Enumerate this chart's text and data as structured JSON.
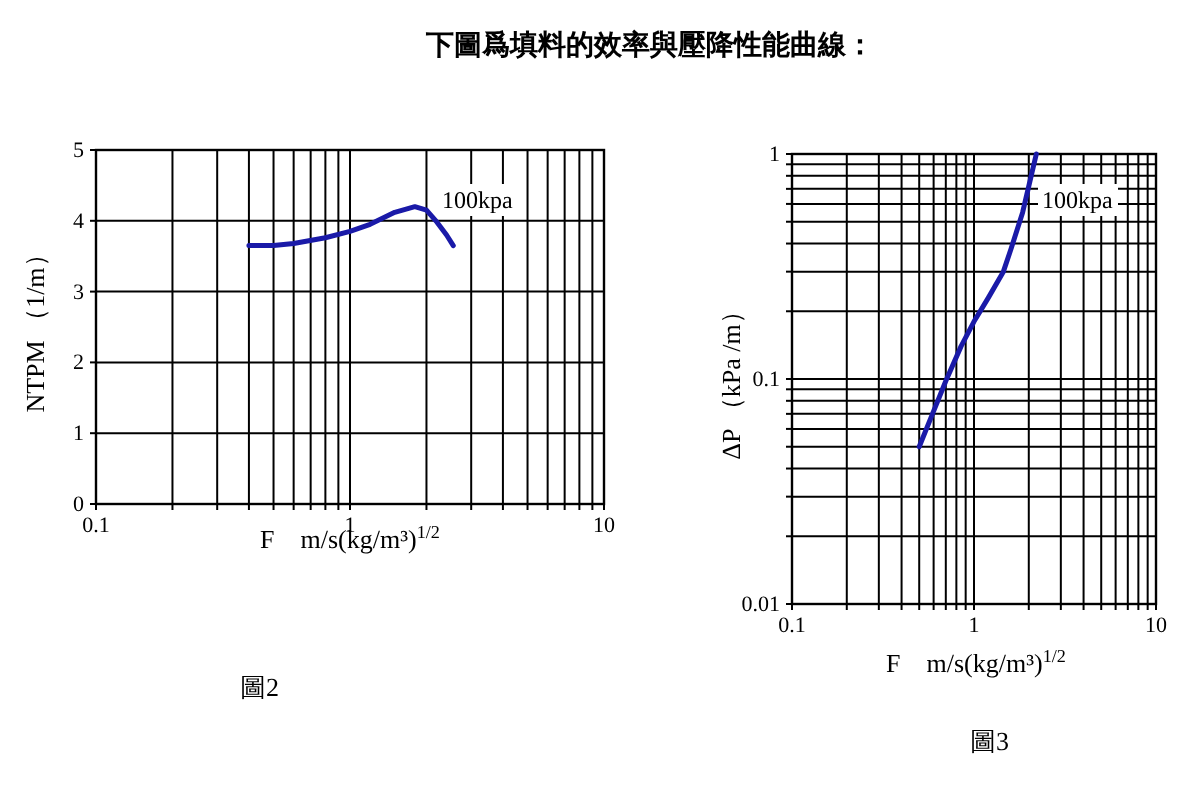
{
  "chart_data": [
    {
      "type": "line",
      "title": "下圖爲填料的效率與壓降性能曲線：",
      "xlabel": "F　m/s(kg/m³)$^{1/2}$",
      "ylabel": "NTPM （1/m）",
      "log": "x",
      "grid": true,
      "marker": "none",
      "line_style": "solid",
      "xlim": [
        0.1,
        10
      ],
      "xticks": [
        0.1,
        {
          "value": 0.2,
          "label": null
        },
        {
          "value": 0.3,
          "label": null
        },
        {
          "value": 0.4,
          "label": null
        },
        {
          "value": 0.5,
          "label": null
        },
        {
          "value": 0.6,
          "label": null
        },
        {
          "value": 0.7,
          "label": null
        },
        {
          "value": 0.8,
          "label": null
        },
        {
          "value": 0.9,
          "label": null
        },
        1,
        {
          "value": 2,
          "label": null
        },
        {
          "value": 3,
          "label": null
        },
        {
          "value": 4,
          "label": null
        },
        {
          "value": 5,
          "label": null
        },
        {
          "value": 6,
          "label": null
        },
        {
          "value": 7,
          "label": null
        },
        {
          "value": 8,
          "label": null
        },
        {
          "value": 9,
          "label": null
        },
        10
      ],
      "ylim": [
        0,
        5
      ],
      "yticks": [
        0,
        1,
        2,
        3,
        4,
        5
      ],
      "series": [
        {
          "color": "#1a1aa8",
          "x": [
            0.4,
            0.5,
            0.6,
            0.8,
            1.0,
            1.2,
            1.5,
            1.8,
            2.0,
            2.2,
            2.4,
            2.55
          ],
          "values": [
            3.65,
            3.65,
            3.68,
            3.76,
            3.85,
            3.95,
            4.12,
            4.2,
            4.15,
            3.98,
            3.8,
            3.65
          ]
        }
      ],
      "annotations": [
        "100kpa",
        "圖2"
      ]
    },
    {
      "type": "line",
      "xlabel": "F　m/s(kg/m³)$^{1/2}$",
      "ylabel": "ΔP （kPa /m）",
      "log": "xy",
      "grid": true,
      "marker": "none",
      "line_style": "solid",
      "xlim": [
        0.1,
        10
      ],
      "xticks": [
        0.1,
        {
          "value": 0.2,
          "label": null
        },
        {
          "value": 0.3,
          "label": null
        },
        {
          "value": 0.4,
          "label": null
        },
        {
          "value": 0.5,
          "label": null
        },
        {
          "value": 0.6,
          "label": null
        },
        {
          "value": 0.7,
          "label": null
        },
        {
          "value": 0.8,
          "label": null
        },
        {
          "value": 0.9,
          "label": null
        },
        1,
        {
          "value": 2,
          "label": null
        },
        {
          "value": 3,
          "label": null
        },
        {
          "value": 4,
          "label": null
        },
        {
          "value": 5,
          "label": null
        },
        {
          "value": 6,
          "label": null
        },
        {
          "value": 7,
          "label": null
        },
        {
          "value": 8,
          "label": null
        },
        {
          "value": 9,
          "label": null
        },
        10
      ],
      "ylim": [
        0.01,
        1
      ],
      "yticks": [
        0.01,
        {
          "value": 0.02,
          "label": null
        },
        {
          "value": 0.03,
          "label": null
        },
        {
          "value": 0.04,
          "label": null
        },
        {
          "value": 0.05,
          "label": null
        },
        {
          "value": 0.06,
          "label": null
        },
        {
          "value": 0.07,
          "label": null
        },
        {
          "value": 0.08,
          "label": null
        },
        {
          "value": 0.09,
          "label": null
        },
        0.1,
        {
          "value": 0.2,
          "label": null
        },
        {
          "value": 0.3,
          "label": null
        },
        {
          "value": 0.4,
          "label": null
        },
        {
          "value": 0.5,
          "label": null
        },
        {
          "value": 0.6,
          "label": null
        },
        {
          "value": 0.7,
          "label": null
        },
        {
          "value": 0.8,
          "label": null
        },
        {
          "value": 0.9,
          "label": null
        },
        1
      ],
      "series": [
        {
          "color": "#1a1aa8",
          "x": [
            0.5,
            0.6,
            0.7,
            0.85,
            1.0,
            1.2,
            1.45,
            1.6,
            1.85,
            2.0,
            2.2
          ],
          "values": [
            0.05,
            0.072,
            0.098,
            0.14,
            0.18,
            0.23,
            0.3,
            0.38,
            0.55,
            0.72,
            1.0
          ]
        }
      ],
      "annotations": [
        "100kpa",
        "圖3"
      ]
    }
  ]
}
